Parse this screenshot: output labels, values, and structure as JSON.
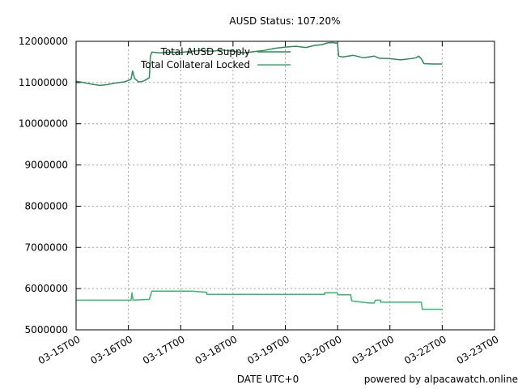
{
  "chart_data": {
    "type": "line",
    "title": "AUSD Status: 107.20%",
    "xlabel": "DATE UTC+0",
    "credit": "powered by alpacawatch.online",
    "ylim": [
      5000000,
      12000000
    ],
    "xlim": [
      0,
      8
    ],
    "grid": true,
    "legend_position": "top-left",
    "y_ticks": [
      5000000,
      6000000,
      7000000,
      8000000,
      9000000,
      10000000,
      11000000,
      12000000
    ],
    "y_tick_labels": [
      "5000000",
      "6000000",
      "7000000",
      "8000000",
      "9000000",
      "10000000",
      "11000000",
      "12000000"
    ],
    "x_ticks": [
      0,
      1,
      2,
      3,
      4,
      5,
      6,
      7,
      8
    ],
    "x_tick_labels": [
      "03-15T00",
      "03-16T00",
      "03-17T00",
      "03-18T00",
      "03-19T00",
      "03-20T00",
      "03-21T00",
      "03-22T00",
      "03-23T00"
    ],
    "series": [
      {
        "name": "Total AUSD Supply",
        "color": "#2e8b57",
        "points": [
          [
            0.0,
            11030000
          ],
          [
            0.15,
            11000000
          ],
          [
            0.3,
            10960000
          ],
          [
            0.45,
            10930000
          ],
          [
            0.6,
            10950000
          ],
          [
            0.75,
            10990000
          ],
          [
            0.9,
            11010000
          ],
          [
            1.0,
            11050000
          ],
          [
            1.05,
            11080000
          ],
          [
            1.08,
            11280000
          ],
          [
            1.12,
            11100000
          ],
          [
            1.2,
            11010000
          ],
          [
            1.3,
            11040000
          ],
          [
            1.4,
            11120000
          ],
          [
            1.42,
            11640000
          ],
          [
            1.45,
            11740000
          ],
          [
            1.6,
            11720000
          ],
          [
            1.8,
            11740000
          ],
          [
            2.0,
            11730000
          ],
          [
            2.2,
            11760000
          ],
          [
            2.4,
            11780000
          ],
          [
            2.6,
            11760000
          ],
          [
            2.8,
            11790000
          ],
          [
            3.0,
            11760000
          ],
          [
            3.2,
            11720000
          ],
          [
            3.4,
            11750000
          ],
          [
            3.6,
            11780000
          ],
          [
            3.8,
            11830000
          ],
          [
            4.0,
            11860000
          ],
          [
            4.2,
            11880000
          ],
          [
            4.4,
            11850000
          ],
          [
            4.55,
            11900000
          ],
          [
            4.7,
            11920000
          ],
          [
            4.8,
            11960000
          ],
          [
            4.9,
            11970000
          ],
          [
            5.0,
            11950000
          ],
          [
            5.02,
            11640000
          ],
          [
            5.1,
            11620000
          ],
          [
            5.3,
            11660000
          ],
          [
            5.5,
            11600000
          ],
          [
            5.7,
            11640000
          ],
          [
            5.8,
            11590000
          ],
          [
            6.0,
            11580000
          ],
          [
            6.2,
            11550000
          ],
          [
            6.4,
            11580000
          ],
          [
            6.5,
            11600000
          ],
          [
            6.55,
            11640000
          ],
          [
            6.6,
            11580000
          ],
          [
            6.65,
            11460000
          ],
          [
            6.8,
            11450000
          ],
          [
            7.0,
            11450000
          ]
        ]
      },
      {
        "name": "Total Collateral Locked",
        "color": "#3cb371",
        "points": [
          [
            0.0,
            5720000
          ],
          [
            1.05,
            5720000
          ],
          [
            1.07,
            5900000
          ],
          [
            1.09,
            5720000
          ],
          [
            1.4,
            5740000
          ],
          [
            1.45,
            5940000
          ],
          [
            2.2,
            5940000
          ],
          [
            2.5,
            5910000
          ],
          [
            2.5,
            5860000
          ],
          [
            4.75,
            5860000
          ],
          [
            4.75,
            5900000
          ],
          [
            5.0,
            5900000
          ],
          [
            5.0,
            5850000
          ],
          [
            5.25,
            5850000
          ],
          [
            5.27,
            5700000
          ],
          [
            5.6,
            5650000
          ],
          [
            5.7,
            5650000
          ],
          [
            5.72,
            5720000
          ],
          [
            5.82,
            5720000
          ],
          [
            5.82,
            5670000
          ],
          [
            6.6,
            5670000
          ],
          [
            6.62,
            5500000
          ],
          [
            7.0,
            5500000
          ]
        ]
      }
    ]
  }
}
